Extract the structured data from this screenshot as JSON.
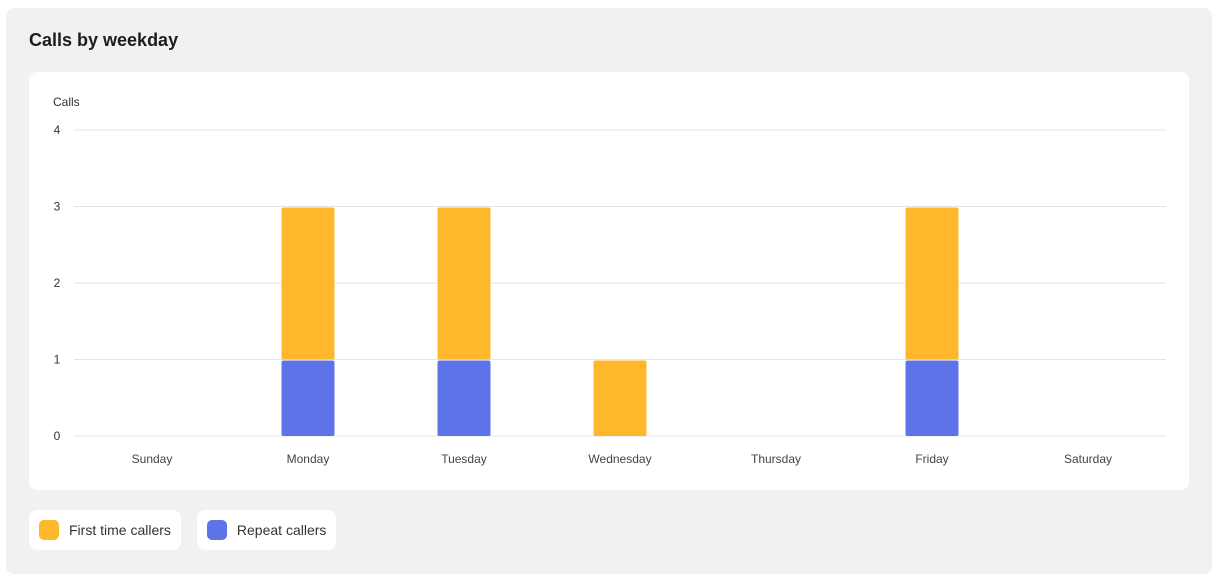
{
  "chart_data": {
    "type": "bar",
    "stacked": true,
    "title": "Calls by weekday",
    "ylabel": "Calls",
    "xlabel": "",
    "ylim": [
      0,
      4
    ],
    "yticks": [
      0,
      1,
      2,
      3,
      4
    ],
    "grid": true,
    "legend_position": "bottom-left",
    "categories": [
      "Sunday",
      "Monday",
      "Tuesday",
      "Wednesday",
      "Thursday",
      "Friday",
      "Saturday"
    ],
    "series": [
      {
        "name": "Repeat callers",
        "color": "#5f73e9",
        "values": [
          0,
          1,
          1,
          0,
          0,
          1,
          0
        ]
      },
      {
        "name": "First time callers",
        "color": "#ffb72c",
        "values": [
          0,
          2,
          2,
          1,
          0,
          2,
          0
        ]
      }
    ]
  },
  "legend": [
    {
      "label": "First time callers",
      "color": "#ffb72c"
    },
    {
      "label": "Repeat callers",
      "color": "#5f73e9"
    }
  ]
}
